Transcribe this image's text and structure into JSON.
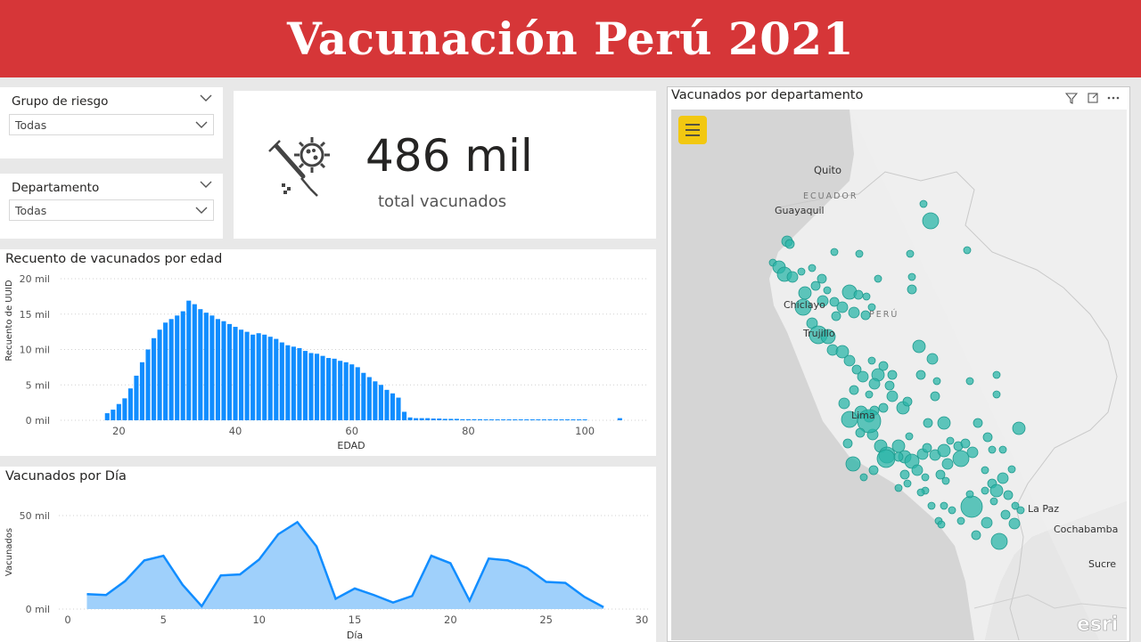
{
  "header": {
    "title": "Vacunación Perú 2021"
  },
  "slicers": [
    {
      "title": "Grupo de riesgo",
      "value": "Todas"
    },
    {
      "title": "Departamento",
      "value": "Todas"
    }
  ],
  "kpi": {
    "value": "486 mil",
    "label": "total vacunados",
    "icon": "vaccine-virus-icon"
  },
  "age_chart": {
    "title": "Recuento de vacunados por edad",
    "ylabel": "Recuento de UUID",
    "xlabel": "EDAD",
    "y_ticks": [
      "20 mil",
      "15 mil",
      "10 mil",
      "5 mil",
      "0 mil"
    ],
    "x_ticks": [
      "20",
      "40",
      "60",
      "80",
      "100"
    ],
    "color": "#118dff"
  },
  "day_chart": {
    "title": "Vacunados por Día",
    "ylabel": "Vacunados",
    "xlabel": "Día",
    "y_ticks": [
      "50 mil",
      "0 mil"
    ],
    "x_ticks": [
      "0",
      "5",
      "10",
      "15",
      "20",
      "25",
      "30"
    ],
    "line_color": "#118dff",
    "fill_color": "#9fd0fb"
  },
  "map": {
    "title": "Vacunados por departamento",
    "labels": [
      "Quito",
      "ECUADOR",
      "Guayaquil",
      "Chiclayo",
      "Trujillo",
      "PERÚ",
      "Lima",
      "La Paz",
      "Cochabamba",
      "Sucre"
    ],
    "bubble_color": "#2bb5a8",
    "esri": "esri"
  },
  "chart_data": [
    {
      "type": "bar",
      "title": "Recuento de vacunados por edad",
      "xlabel": "EDAD",
      "ylabel": "Recuento de UUID",
      "ylim": [
        0,
        20000
      ],
      "x": [
        18,
        19,
        20,
        21,
        22,
        23,
        24,
        25,
        26,
        27,
        28,
        29,
        30,
        31,
        32,
        33,
        34,
        35,
        36,
        37,
        38,
        39,
        40,
        41,
        42,
        43,
        44,
        45,
        46,
        47,
        48,
        49,
        50,
        51,
        52,
        53,
        54,
        55,
        56,
        57,
        58,
        59,
        60,
        61,
        62,
        63,
        64,
        65,
        66,
        67,
        68,
        69,
        70,
        71,
        72,
        73,
        74,
        75,
        76,
        77,
        78,
        79,
        80,
        81,
        82,
        83,
        84,
        85,
        86,
        87,
        88,
        89,
        90,
        91,
        92,
        93,
        94,
        95,
        96,
        97,
        98,
        99,
        100,
        106
      ],
      "values": [
        1000,
        1500,
        2300,
        3100,
        4500,
        6300,
        8200,
        10000,
        11600,
        12800,
        13800,
        14300,
        14800,
        15400,
        16900,
        16400,
        15700,
        15200,
        14800,
        14300,
        14000,
        13600,
        13200,
        12800,
        12500,
        12100,
        12300,
        12100,
        11800,
        11500,
        11000,
        10600,
        10400,
        10200,
        9800,
        9500,
        9400,
        9100,
        8800,
        8700,
        8400,
        8200,
        7900,
        7500,
        6700,
        6100,
        5500,
        5000,
        4300,
        3800,
        3200,
        1200,
        400,
        300,
        300,
        300,
        250,
        250,
        200,
        200,
        200,
        150,
        150,
        150,
        150,
        120,
        120,
        100,
        100,
        100,
        80,
        80,
        70,
        60,
        50,
        50,
        50,
        40,
        40,
        30,
        30,
        30,
        30,
        300
      ],
      "color": "#118dff"
    },
    {
      "type": "area",
      "title": "Vacunados por Día",
      "xlabel": "Día",
      "ylabel": "Vacunados",
      "xlim": [
        0,
        30
      ],
      "ylim": [
        0,
        50000
      ],
      "x": [
        1,
        2,
        3,
        4,
        5,
        6,
        7,
        8,
        9,
        10,
        11,
        12,
        13,
        14,
        15,
        16,
        17,
        18,
        19,
        20,
        21,
        22,
        23,
        24,
        25,
        26,
        27,
        28
      ],
      "values": [
        8000,
        7500,
        15000,
        26000,
        28500,
        13000,
        1500,
        18000,
        18500,
        26500,
        40000,
        46500,
        33500,
        5500,
        11000,
        7500,
        3500,
        7000,
        28500,
        24500,
        4500,
        27000,
        26000,
        22000,
        14500,
        14000,
        6500,
        1000
      ],
      "color": "#118dff"
    }
  ]
}
